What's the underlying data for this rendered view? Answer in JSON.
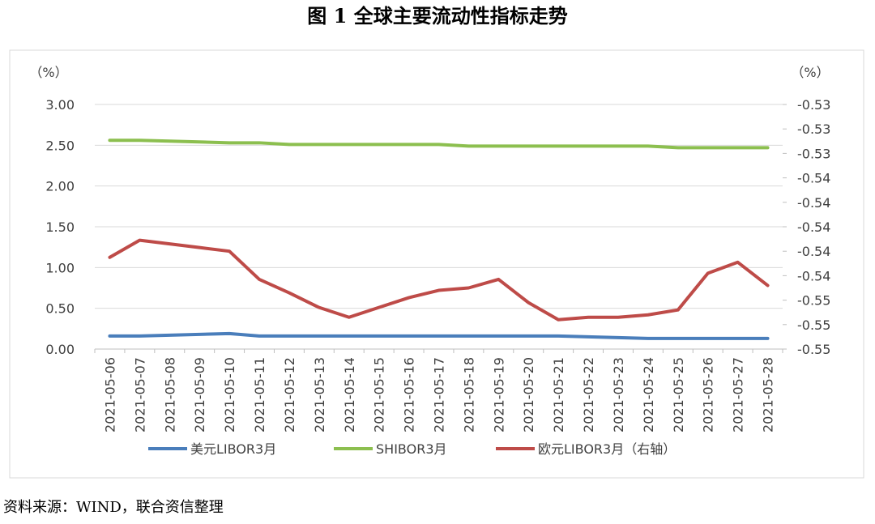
{
  "chart_data": {
    "type": "line",
    "title": "图 1  全球主要流动性指标走势",
    "source": "资料来源：WIND，联合资信整理",
    "y_label": "（%）",
    "y2_label": "（%）",
    "categories": [
      "2021-05-06",
      "2021-05-07",
      "2021-05-08",
      "2021-05-09",
      "2021-05-10",
      "2021-05-11",
      "2021-05-12",
      "2021-05-13",
      "2021-05-14",
      "2021-05-15",
      "2021-05-16",
      "2021-05-17",
      "2021-05-18",
      "2021-05-19",
      "2021-05-20",
      "2021-05-21",
      "2021-05-22",
      "2021-05-23",
      "2021-05-24",
      "2021-05-25",
      "2021-05-26",
      "2021-05-27",
      "2021-05-28"
    ],
    "ylim": [
      0,
      3
    ],
    "yticks": [
      {
        "value": 0,
        "label": "0.00"
      },
      {
        "value": 0.5,
        "label": "0.50"
      },
      {
        "value": 1,
        "label": "1.00"
      },
      {
        "value": 1.5,
        "label": "1.50"
      },
      {
        "value": 2,
        "label": "2.00"
      },
      {
        "value": 2.5,
        "label": "2.50"
      },
      {
        "value": 3,
        "label": "3.00"
      }
    ],
    "y2lim": [
      -0.55,
      -0.53
    ],
    "y2ticks": [
      {
        "value": -0.55,
        "label": "-0.55"
      },
      {
        "value": -0.548,
        "label": "-0.55"
      },
      {
        "value": -0.546,
        "label": "-0.55"
      },
      {
        "value": -0.544,
        "label": "-0.54"
      },
      {
        "value": -0.542,
        "label": "-0.54"
      },
      {
        "value": -0.54,
        "label": "-0.54"
      },
      {
        "value": -0.538,
        "label": "-0.54"
      },
      {
        "value": -0.536,
        "label": "-0.54"
      },
      {
        "value": -0.534,
        "label": "-0.53"
      },
      {
        "value": -0.532,
        "label": "-0.53"
      },
      {
        "value": -0.53,
        "label": "-0.53"
      }
    ],
    "grid": true,
    "series": [
      {
        "name": "美元LIBOR3月",
        "color": "#4a7ebb",
        "values": [
          0.16,
          0.16,
          0.17,
          0.18,
          0.19,
          0.16,
          0.16,
          0.16,
          0.16,
          0.16,
          0.16,
          0.16,
          0.16,
          0.16,
          0.16,
          0.16,
          0.15,
          0.14,
          0.13,
          0.13,
          0.13,
          0.13,
          0.13
        ]
      },
      {
        "name": "SHIBOR3月",
        "color": "#8cbf4f",
        "values": [
          2.56,
          2.56,
          2.55,
          2.54,
          2.53,
          2.53,
          2.51,
          2.51,
          2.51,
          2.51,
          2.51,
          2.51,
          2.49,
          2.49,
          2.49,
          2.49,
          2.49,
          2.49,
          2.49,
          2.47,
          2.47,
          2.47,
          2.47
        ]
      },
      {
        "name": "欧元LIBOR3月（右轴）",
        "color": "#be4b48",
        "axis": "y2",
        "values": [
          -0.5425,
          -0.5411,
          -0.5414,
          -0.5417,
          -0.542,
          -0.5443,
          -0.5454,
          -0.5466,
          -0.5474,
          -0.5466,
          -0.5458,
          -0.5452,
          -0.545,
          -0.5443,
          -0.5462,
          -0.5476,
          -0.5474,
          -0.5474,
          -0.5472,
          -0.5468,
          -0.5438,
          -0.5429,
          -0.5448
        ]
      }
    ]
  }
}
